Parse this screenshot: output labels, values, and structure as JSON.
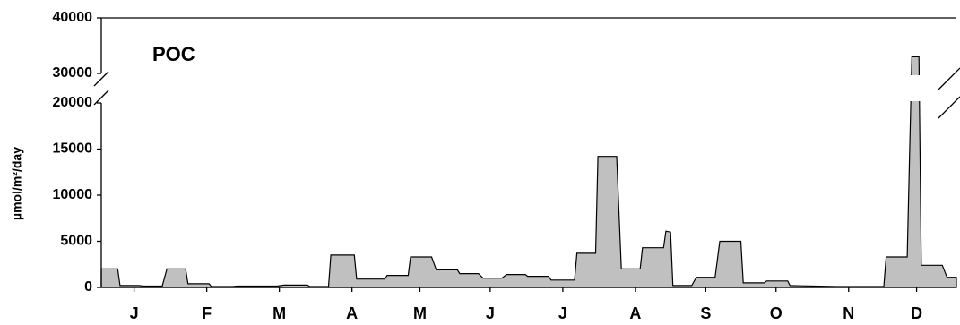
{
  "chart_data": {
    "type": "area",
    "annotation": "POC",
    "y_label": "µmol/m²/day",
    "color": "#c0c0c0",
    "xlim": [
      0,
      365
    ],
    "xticks": [
      {
        "value": 14,
        "label": "J"
      },
      {
        "value": 45,
        "label": "F"
      },
      {
        "value": 76,
        "label": "M"
      },
      {
        "value": 107,
        "label": "A"
      },
      {
        "value": 136,
        "label": "M"
      },
      {
        "value": 166,
        "label": "J"
      },
      {
        "value": 197,
        "label": "J"
      },
      {
        "value": 228,
        "label": "A"
      },
      {
        "value": 258,
        "label": "S"
      },
      {
        "value": 288,
        "label": "O"
      },
      {
        "value": 319,
        "label": "N"
      },
      {
        "value": 348,
        "label": "D"
      }
    ],
    "ylim": [
      0,
      40000
    ],
    "y_break": [
      20000,
      30000
    ],
    "yticks": [
      0,
      5000,
      10000,
      15000,
      20000,
      30000,
      40000
    ],
    "x": [
      0,
      7,
      8,
      16,
      18,
      26,
      28,
      36,
      37,
      46,
      47,
      56,
      58,
      75,
      78,
      88,
      89,
      97,
      98,
      108,
      109,
      121,
      122,
      131,
      132,
      141,
      143,
      152,
      153,
      161,
      163,
      171,
      173,
      181,
      182,
      191,
      192,
      202,
      203,
      211,
      212,
      220,
      222,
      230,
      231,
      240,
      241,
      243,
      244,
      252,
      254,
      262,
      264,
      273,
      274,
      283,
      284,
      293,
      294,
      314,
      334,
      335,
      344,
      346,
      349,
      350,
      359,
      361,
      365
    ],
    "values": [
      2000,
      2000,
      200,
      200,
      150,
      150,
      2000,
      2000,
      400,
      400,
      100,
      100,
      150,
      150,
      250,
      250,
      100,
      100,
      3500,
      3500,
      900,
      900,
      1300,
      1300,
      3300,
      3300,
      1900,
      1900,
      1500,
      1500,
      1000,
      1000,
      1400,
      1400,
      1200,
      1200,
      800,
      800,
      3700,
      3700,
      14200,
      14200,
      2000,
      2000,
      4300,
      4300,
      6100,
      6000,
      200,
      200,
      1100,
      1100,
      5000,
      5000,
      500,
      500,
      700,
      700,
      200,
      100,
      100,
      3300,
      3300,
      33000,
      33000,
      2400,
      2400,
      1100,
      1100
    ]
  }
}
